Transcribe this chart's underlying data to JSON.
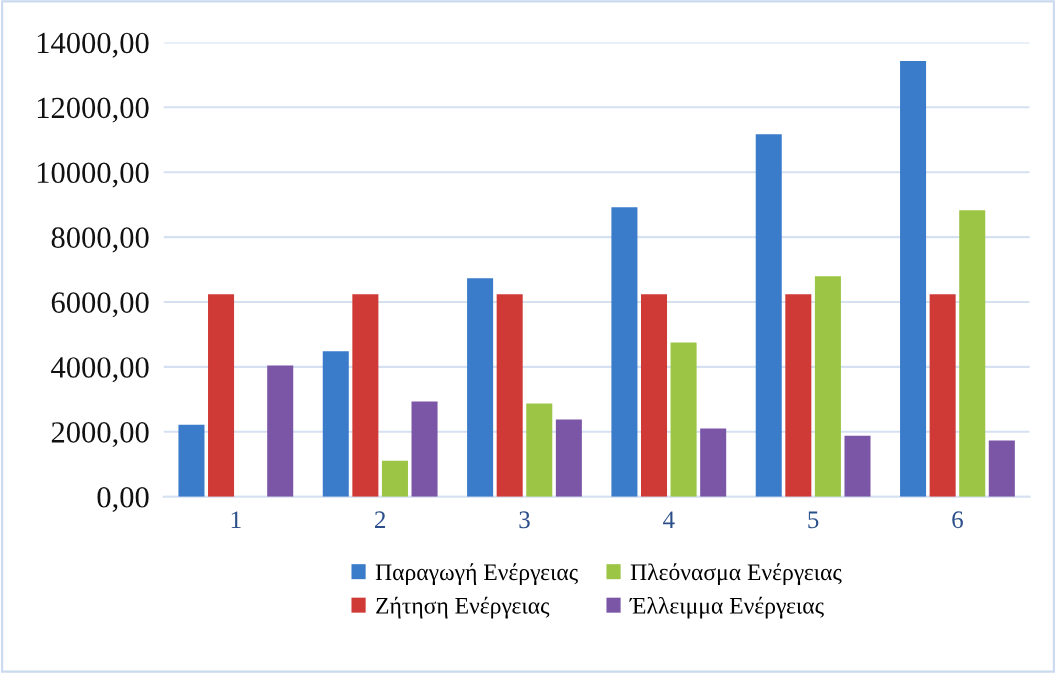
{
  "chart_data": {
    "type": "bar",
    "categories": [
      "1",
      "2",
      "3",
      "4",
      "5",
      "6"
    ],
    "series": [
      {
        "name": "Παραγωγή Ενέργειας",
        "color": "#3a7bca",
        "values": [
          2220,
          4480,
          6730,
          8920,
          11170,
          13430
        ]
      },
      {
        "name": "Ζήτηση Ενέργειας",
        "color": "#cf3a36",
        "values": [
          6240,
          6240,
          6240,
          6240,
          6240,
          6240
        ]
      },
      {
        "name": "Πλεόνασμα Ενέργειας",
        "color": "#9cc445",
        "values": [
          0,
          1110,
          2870,
          4750,
          6790,
          8830
        ]
      },
      {
        "name": "Έλλειμμα Ενέργειας",
        "color": "#7b56a6",
        "values": [
          4040,
          2930,
          2380,
          2100,
          1880,
          1730
        ]
      }
    ],
    "ylim": [
      0,
      14000
    ],
    "yticks": [
      {
        "value": 0,
        "label": "0,00"
      },
      {
        "value": 2000,
        "label": "2000,00"
      },
      {
        "value": 4000,
        "label": "4000,00"
      },
      {
        "value": 6000,
        "label": "6000,00"
      },
      {
        "value": 8000,
        "label": "8000,00"
      },
      {
        "value": 10000,
        "label": "10000,00"
      },
      {
        "value": 12000,
        "label": "12000,00"
      },
      {
        "value": 14000,
        "label": "14000,00"
      }
    ],
    "grid": "y",
    "legend": "bottom"
  }
}
